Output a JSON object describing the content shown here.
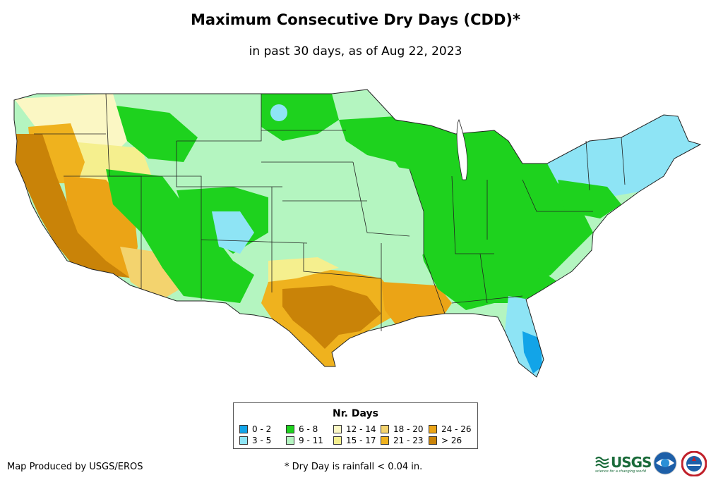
{
  "header": {
    "title": "Maximum Consecutive Dry Days (CDD)*",
    "subtitle": "in past 30 days, as of Aug 22, 2023"
  },
  "legend": {
    "title": "Nr. Days",
    "items": [
      {
        "label": "0 - 2",
        "color": "#12a4e8"
      },
      {
        "label": "3 - 5",
        "color": "#8ee4f5"
      },
      {
        "label": "6 - 8",
        "color": "#1ed21e"
      },
      {
        "label": "9 - 11",
        "color": "#b4f5c0"
      },
      {
        "label": "12 - 14",
        "color": "#fbf7c4"
      },
      {
        "label": "15 - 17",
        "color": "#f5ef8e"
      },
      {
        "label": "18 - 20",
        "color": "#f3d36e"
      },
      {
        "label": "21 - 23",
        "color": "#efb21e"
      },
      {
        "label": "24 - 26",
        "color": "#eba416"
      },
      {
        "label": "> 26",
        "color": "#c98308"
      }
    ]
  },
  "footer": {
    "credit": "Map Produced by USGS/EROS",
    "note": "* Dry Day is rainfall < 0.04 in."
  },
  "logos": {
    "usgs": "USGS",
    "usgs_tagline": "science for a changing world",
    "noaa": "NOAA",
    "nws": "NWS"
  }
}
